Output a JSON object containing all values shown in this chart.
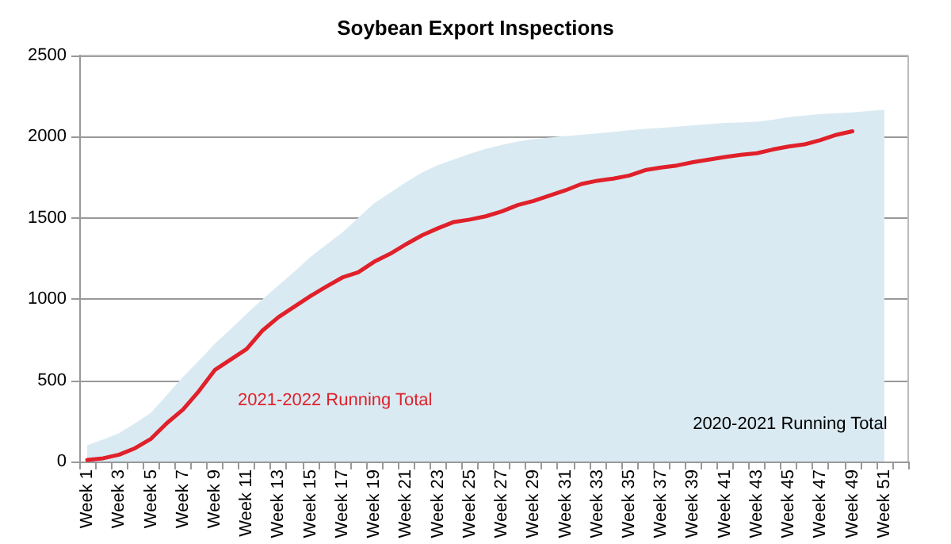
{
  "chart_data": {
    "type": "line",
    "title": "Soybean Export Inspections",
    "categories": [
      "Week 1",
      null,
      "Week 3",
      null,
      "Week 5",
      null,
      "Week 7",
      null,
      "Week 9",
      null,
      "Week 11",
      null,
      "Week 13",
      null,
      "Week 15",
      null,
      "Week 17",
      null,
      "Week 19",
      null,
      "Week 21",
      null,
      "Week 23",
      null,
      "Week 25",
      null,
      "Week 27",
      null,
      "Week 29",
      null,
      "Week 31",
      null,
      "Week 33",
      null,
      "Week 35",
      null,
      "Week 37",
      null,
      "Week 39",
      null,
      "Week 41",
      null,
      "Week 43",
      null,
      "Week 45",
      null,
      "Week 47",
      null,
      "Week 49",
      null,
      "Week 51",
      null
    ],
    "series": [
      {
        "name": "2020-2021 Running Total",
        "type": "area",
        "color": "#d9eaf2",
        "values": [
          100,
          135,
          175,
          235,
          300,
          410,
          520,
          620,
          725,
          815,
          910,
          1000,
          1085,
          1170,
          1260,
          1335,
          1410,
          1500,
          1590,
          1655,
          1720,
          1780,
          1825,
          1860,
          1895,
          1925,
          1950,
          1970,
          1985,
          1995,
          2005,
          2012,
          2020,
          2030,
          2040,
          2048,
          2055,
          2062,
          2070,
          2078,
          2085,
          2088,
          2092,
          2105,
          2120,
          2130,
          2140,
          2145,
          2150,
          2158,
          2165,
          null
        ]
      },
      {
        "name": "2021-2022 Running Total",
        "type": "line",
        "color": "#e0202a",
        "values": [
          10,
          20,
          42,
          82,
          140,
          237,
          319,
          433,
          563,
          628,
          693,
          807,
          889,
          954,
          1019,
          1077,
          1133,
          1165,
          1230,
          1279,
          1338,
          1393,
          1436,
          1475,
          1490,
          1510,
          1540,
          1579,
          1605,
          1637,
          1670,
          1709,
          1729,
          1742,
          1761,
          1794,
          1810,
          1823,
          1843,
          1859,
          1875,
          1888,
          1898,
          1921,
          1940,
          1953,
          1979,
          2012,
          2034,
          null,
          null,
          null
        ]
      }
    ],
    "ylim": [
      0,
      2500
    ],
    "yticks": [
      0,
      500,
      1000,
      1500,
      2000,
      2500
    ],
    "grid": "y",
    "legend": false,
    "marker": "none",
    "line_style": "solid"
  }
}
